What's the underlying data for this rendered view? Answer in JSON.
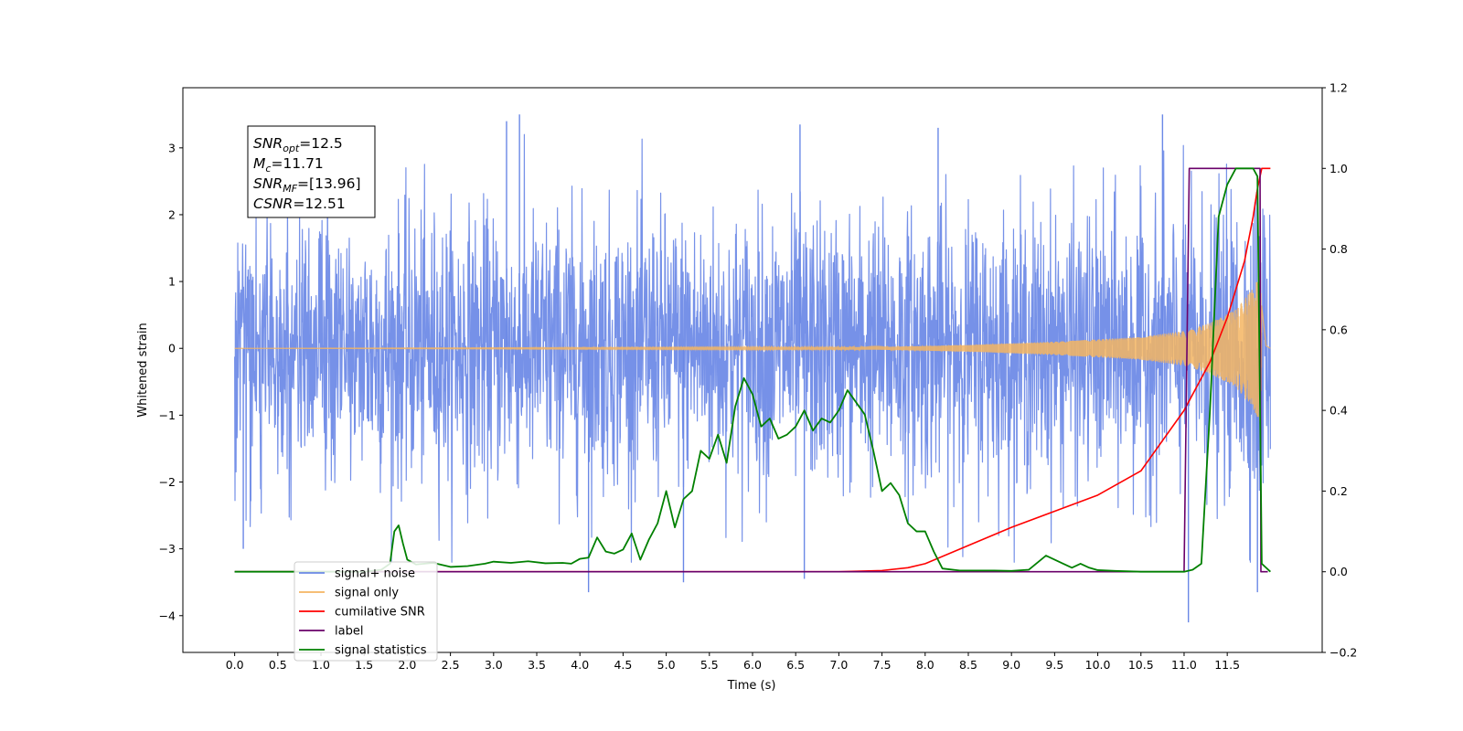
{
  "chart_data": {
    "type": "line",
    "xlabel": "Time (s)",
    "ylabel": "Whitened strain",
    "xlim": [
      -0.6,
      12.6
    ],
    "ylim": [
      -4.55,
      3.9
    ],
    "y2lim": [
      -0.2,
      1.2
    ],
    "grid": false,
    "legend_position": "lower-left",
    "x_ticks": [
      "0.0",
      "0.5",
      "1.0",
      "1.5",
      "2.0",
      "2.5",
      "3.0",
      "3.5",
      "4.0",
      "4.5",
      "5.0",
      "5.5",
      "6.0",
      "6.5",
      "7.0",
      "7.5",
      "8.0",
      "8.5",
      "9.0",
      "9.5",
      "10.0",
      "10.5",
      "11.0",
      "11.5"
    ],
    "y_ticks": [
      "−4",
      "−3",
      "−2",
      "−1",
      "0",
      "1",
      "2",
      "3"
    ],
    "y2_ticks": [
      "−0.2",
      "0.0",
      "0.2",
      "0.4",
      "0.6",
      "0.8",
      "1.0",
      "1.2"
    ],
    "annotation": {
      "lines": [
        {
          "base": "SNR",
          "sub": "opt",
          "value": "=12.5"
        },
        {
          "base": "M",
          "sub": "c",
          "value": "=11.71"
        },
        {
          "base": "SNR",
          "sub": "MF",
          "value": "=[13.96]"
        },
        {
          "base": "CSNR",
          "sub": "",
          "value": "=12.51"
        }
      ]
    },
    "colors": {
      "noise": "#6a88e6",
      "signal": "#f5b562",
      "csnr": "#ff0000",
      "label": "#6a006a",
      "stats": "#008000"
    },
    "legend": [
      {
        "name": "signal+ noise",
        "color": "#6a88e6"
      },
      {
        "name": "signal only",
        "color": "#f5b562"
      },
      {
        "name": "cumilative SNR",
        "color": "#ff0000"
      },
      {
        "name": "label",
        "color": "#6a006a"
      },
      {
        "name": "signal statistics",
        "color": "#008000"
      }
    ],
    "series": [
      {
        "name": "signal+ noise",
        "axis": "left",
        "envelope": {
          "t": [
            0.0,
            1.0,
            2.0,
            3.0,
            4.0,
            5.0,
            6.0,
            7.0,
            8.0,
            9.0,
            10.0,
            11.0,
            11.5,
            11.85,
            12.0
          ],
          "typical_abs": [
            1.6,
            1.6,
            1.6,
            1.6,
            1.6,
            1.6,
            1.6,
            1.6,
            1.6,
            1.6,
            1.6,
            1.65,
            1.7,
            2.0,
            1.5
          ]
        },
        "peaks": [
          {
            "t": 3.3,
            "v": 3.5
          },
          {
            "t": 10.75,
            "v": 3.5
          },
          {
            "t": 3.15,
            "v": 3.4
          },
          {
            "t": 6.55,
            "v": 3.35
          },
          {
            "t": 8.15,
            "v": 3.3
          },
          {
            "t": 11.05,
            "v": -4.1
          },
          {
            "t": 4.1,
            "v": -3.65
          },
          {
            "t": 11.85,
            "v": -3.65
          },
          {
            "t": 5.2,
            "v": -3.5
          },
          {
            "t": 6.6,
            "v": -3.45
          },
          {
            "t": 0.1,
            "v": -3.0
          }
        ]
      },
      {
        "name": "signal only",
        "axis": "left",
        "envelope": {
          "t": [
            0.0,
            7.5,
            8.5,
            9.5,
            10.5,
            11.0,
            11.3,
            11.6,
            11.8,
            11.88,
            11.95,
            12.0
          ],
          "amp": [
            0.0,
            0.02,
            0.05,
            0.1,
            0.17,
            0.26,
            0.38,
            0.58,
            0.9,
            1.1,
            0.05,
            0.0
          ]
        }
      },
      {
        "name": "cumilative SNR",
        "axis": "right",
        "x": [
          0.0,
          7.0,
          7.5,
          7.8,
          8.0,
          8.5,
          9.0,
          9.5,
          10.0,
          10.5,
          11.0,
          11.3,
          11.5,
          11.7,
          11.8,
          11.85,
          11.9,
          12.0
        ],
        "y": [
          0.0,
          0.0,
          0.003,
          0.01,
          0.02,
          0.065,
          0.11,
          0.15,
          0.19,
          0.25,
          0.4,
          0.52,
          0.63,
          0.77,
          0.88,
          0.95,
          1.0,
          1.0
        ]
      },
      {
        "name": "label",
        "axis": "right",
        "x": [
          0.0,
          11.0,
          11.06,
          11.88,
          11.89,
          11.97
        ],
        "y": [
          0.0,
          0.0,
          1.0,
          1.0,
          0.0,
          0.0
        ]
      },
      {
        "name": "signal statistics",
        "axis": "right",
        "x": [
          0.0,
          1.0,
          1.5,
          1.7,
          1.8,
          1.85,
          1.9,
          1.95,
          2.0,
          2.1,
          2.3,
          2.5,
          2.7,
          2.9,
          3.0,
          3.2,
          3.4,
          3.6,
          3.8,
          3.9,
          4.0,
          4.1,
          4.2,
          4.3,
          4.4,
          4.5,
          4.6,
          4.7,
          4.8,
          4.9,
          5.0,
          5.1,
          5.2,
          5.3,
          5.4,
          5.5,
          5.6,
          5.7,
          5.8,
          5.9,
          6.0,
          6.1,
          6.2,
          6.3,
          6.4,
          6.5,
          6.6,
          6.7,
          6.8,
          6.9,
          7.0,
          7.1,
          7.2,
          7.3,
          7.4,
          7.5,
          7.6,
          7.7,
          7.8,
          7.9,
          8.0,
          8.1,
          8.2,
          8.4,
          8.6,
          8.8,
          9.0,
          9.2,
          9.4,
          9.6,
          9.7,
          9.8,
          9.9,
          10.0,
          10.2,
          10.5,
          10.8,
          11.0,
          11.1,
          11.2,
          11.3,
          11.4,
          11.5,
          11.6,
          11.7,
          11.8,
          11.85,
          11.9,
          12.0
        ],
        "y": [
          0.0,
          0.0,
          0.0,
          0.005,
          0.02,
          0.1,
          0.115,
          0.07,
          0.03,
          0.018,
          0.022,
          0.012,
          0.014,
          0.02,
          0.025,
          0.022,
          0.026,
          0.021,
          0.022,
          0.02,
          0.032,
          0.035,
          0.085,
          0.05,
          0.045,
          0.055,
          0.095,
          0.03,
          0.08,
          0.12,
          0.2,
          0.11,
          0.18,
          0.2,
          0.3,
          0.28,
          0.34,
          0.27,
          0.41,
          0.48,
          0.44,
          0.36,
          0.38,
          0.33,
          0.34,
          0.36,
          0.4,
          0.35,
          0.38,
          0.37,
          0.4,
          0.45,
          0.42,
          0.39,
          0.3,
          0.2,
          0.22,
          0.19,
          0.12,
          0.1,
          0.1,
          0.05,
          0.008,
          0.003,
          0.003,
          0.003,
          0.002,
          0.005,
          0.04,
          0.02,
          0.01,
          0.02,
          0.01,
          0.004,
          0.002,
          0.0,
          0.0,
          0.0,
          0.005,
          0.02,
          0.4,
          0.88,
          0.96,
          1.0,
          1.0,
          1.0,
          0.98,
          0.02,
          0.0
        ]
      }
    ]
  }
}
